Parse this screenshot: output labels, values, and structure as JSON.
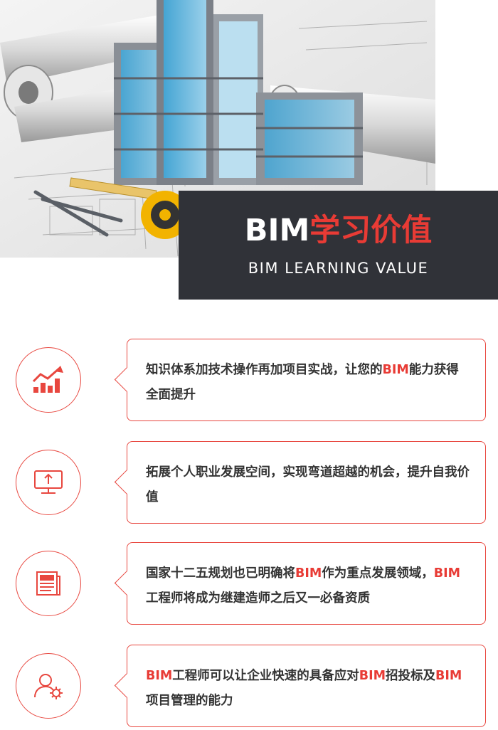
{
  "hero": {
    "title_prefix": "BIM",
    "title_accent": "学习价值",
    "subtitle": "BIM LEARNING VALUE"
  },
  "items": [
    {
      "icon": "growth-chart-icon",
      "segments": [
        {
          "text": "知识体系加技术操作再加项目实战，让您的",
          "hl": false
        },
        {
          "text": "BIM",
          "hl": true
        },
        {
          "text": "能力获得全面提升",
          "hl": false
        }
      ]
    },
    {
      "icon": "monitor-upload-icon",
      "segments": [
        {
          "text": "拓展个人职业发展空间，实现弯道超越的机会，提升自我价值",
          "hl": false
        }
      ]
    },
    {
      "icon": "document-icon",
      "segments": [
        {
          "text": "国家十二五规划也已明确将",
          "hl": false
        },
        {
          "text": "BIM",
          "hl": true
        },
        {
          "text": "作为重点发展领域，",
          "hl": false
        },
        {
          "text": "BIM",
          "hl": true
        },
        {
          "text": "工程师将成为继建造师之后又一必备资质",
          "hl": false
        }
      ]
    },
    {
      "icon": "user-gear-icon",
      "segments": [
        {
          "text": "BIM",
          "hl": true
        },
        {
          "text": "工程师可以让企业快速的具备应对",
          "hl": false
        },
        {
          "text": "BIM",
          "hl": true
        },
        {
          "text": "招投标及",
          "hl": false
        },
        {
          "text": "BIM",
          "hl": true
        },
        {
          "text": "项目管理的能力",
          "hl": false
        }
      ]
    }
  ],
  "colors": {
    "accent": "#e83b35",
    "dark": "#303238",
    "text": "#333333"
  }
}
